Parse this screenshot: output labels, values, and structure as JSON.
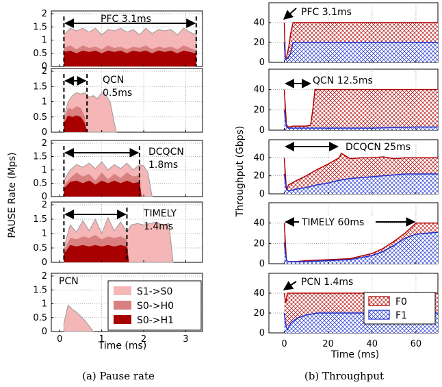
{
  "captions": {
    "left": "(a)  Pause rate",
    "right": "(b)  Throughput"
  },
  "left": {
    "ylabel": "PAUSE Rate (Mps)",
    "xlabel": "Time (ms)",
    "xticks": [
      "0",
      "1",
      "2",
      "3"
    ],
    "yticks": [
      "0",
      "0.5",
      "1",
      "1.5",
      "2"
    ],
    "legend": [
      "S1->S0",
      "S0->H0",
      "S0->H1"
    ]
  },
  "right": {
    "ylabel": "Throughput (Gbps)",
    "xlabel": "Time (ms)",
    "xticks": [
      "0",
      "20",
      "40",
      "60"
    ],
    "yticks": [
      "0",
      "20",
      "40"
    ],
    "legend": [
      "F0",
      "F1"
    ]
  },
  "colors": {
    "s1s0": "#f4b6b6",
    "s0h0": "#d98080",
    "s0h1": "#a80000",
    "f0": "#b00000",
    "f1": "#1a2fd0",
    "grid": "#999999"
  },
  "chart_data": [
    {
      "type": "area",
      "panel": "pause-pfc",
      "annotation": "PFC  3.1ms",
      "xlim": [
        -0.2,
        3.4
      ],
      "ylim": [
        0,
        2
      ],
      "span": [
        0.1,
        3.25
      ],
      "series": [
        {
          "name": "S1->S0",
          "x": [
            0.1,
            0.25,
            0.4,
            0.55,
            0.7,
            0.85,
            1.0,
            1.15,
            1.3,
            1.45,
            1.6,
            1.75,
            1.9,
            2.05,
            2.2,
            2.35,
            2.5,
            2.65,
            2.8,
            2.95,
            3.1,
            3.25
          ],
          "y": [
            1.2,
            1.45,
            1.35,
            1.45,
            1.3,
            1.45,
            1.2,
            1.4,
            1.35,
            1.45,
            1.3,
            1.4,
            1.2,
            1.45,
            1.25,
            1.4,
            1.35,
            1.4,
            1.2,
            1.45,
            1.3,
            1.2
          ]
        },
        {
          "name": "S0->H0",
          "x": [
            0.1,
            0.25,
            0.4,
            0.55,
            0.7,
            0.85,
            1.0,
            1.15,
            1.3,
            1.45,
            1.6,
            1.75,
            1.9,
            2.05,
            2.2,
            2.35,
            2.5,
            2.65,
            2.8,
            2.95,
            3.1,
            3.25
          ],
          "y": [
            0.7,
            0.8,
            0.65,
            0.8,
            0.7,
            0.75,
            0.65,
            0.8,
            0.7,
            0.75,
            0.65,
            0.75,
            0.7,
            0.8,
            0.65,
            0.75,
            0.7,
            0.75,
            0.65,
            0.8,
            0.7,
            0.6
          ]
        },
        {
          "name": "S0->H1",
          "x": [
            0.1,
            0.25,
            0.4,
            0.55,
            0.7,
            0.85,
            1.0,
            1.15,
            1.3,
            1.45,
            1.6,
            1.75,
            1.9,
            2.05,
            2.2,
            2.35,
            2.5,
            2.65,
            2.8,
            2.95,
            3.1,
            3.25
          ],
          "y": [
            0.55,
            0.6,
            0.5,
            0.6,
            0.55,
            0.6,
            0.5,
            0.6,
            0.55,
            0.6,
            0.5,
            0.6,
            0.55,
            0.6,
            0.5,
            0.6,
            0.55,
            0.6,
            0.5,
            0.6,
            0.55,
            0.5
          ]
        }
      ]
    },
    {
      "type": "area",
      "panel": "pause-qcn",
      "annotation": [
        "QCN",
        "0.5ms"
      ],
      "xlim": [
        -0.2,
        3.4
      ],
      "ylim": [
        0,
        2
      ],
      "span": [
        0.1,
        0.65
      ],
      "series": [
        {
          "name": "S1->S0",
          "x": [
            0.1,
            0.2,
            0.3,
            0.4,
            0.5,
            0.6,
            0.7,
            0.8,
            0.9,
            1.0,
            1.1,
            1.2,
            1.3,
            1.35
          ],
          "y": [
            0.5,
            1.0,
            1.2,
            1.3,
            1.25,
            1.3,
            1.15,
            1.2,
            1.1,
            1.3,
            1.2,
            1.0,
            0.3,
            0.0
          ]
        },
        {
          "name": "S0->H0",
          "x": [
            0.1,
            0.2,
            0.3,
            0.4,
            0.5,
            0.6,
            0.65
          ],
          "y": [
            0.4,
            0.8,
            0.75,
            0.85,
            0.8,
            0.5,
            0.0
          ]
        },
        {
          "name": "S0->H1",
          "x": [
            0.1,
            0.2,
            0.3,
            0.4,
            0.5,
            0.6,
            0.65
          ],
          "y": [
            0.3,
            0.55,
            0.5,
            0.55,
            0.5,
            0.3,
            0.0
          ]
        }
      ]
    },
    {
      "type": "area",
      "panel": "pause-dcqcn",
      "annotation": [
        "DCQCN",
        "1.8ms"
      ],
      "xlim": [
        -0.2,
        3.4
      ],
      "ylim": [
        0,
        2
      ],
      "span": [
        0.1,
        1.9
      ],
      "series": [
        {
          "name": "S1->S0",
          "x": [
            0.1,
            0.25,
            0.4,
            0.55,
            0.7,
            0.85,
            1.0,
            1.15,
            1.3,
            1.45,
            1.6,
            1.75,
            1.9,
            2.0,
            2.1,
            2.2
          ],
          "y": [
            0.6,
            1.0,
            1.2,
            1.1,
            1.25,
            1.05,
            1.3,
            1.0,
            1.2,
            1.05,
            1.25,
            1.0,
            1.2,
            1.15,
            0.9,
            0.0
          ]
        },
        {
          "name": "S0->H0",
          "x": [
            0.1,
            0.25,
            0.4,
            0.55,
            0.7,
            0.85,
            1.0,
            1.15,
            1.3,
            1.45,
            1.6,
            1.75,
            1.9,
            1.95
          ],
          "y": [
            0.4,
            0.7,
            0.9,
            0.75,
            0.85,
            0.6,
            0.9,
            0.65,
            0.85,
            0.7,
            0.9,
            0.75,
            0.8,
            0.0
          ]
        },
        {
          "name": "S0->H1",
          "x": [
            0.1,
            0.25,
            0.4,
            0.55,
            0.7,
            0.85,
            1.0,
            1.15,
            1.3,
            1.45,
            1.6,
            1.75,
            1.9,
            1.95
          ],
          "y": [
            0.3,
            0.55,
            0.6,
            0.5,
            0.6,
            0.45,
            0.6,
            0.5,
            0.6,
            0.5,
            0.6,
            0.5,
            0.55,
            0.0
          ]
        }
      ]
    },
    {
      "type": "area",
      "panel": "pause-timely",
      "annotation": [
        "TIMELY",
        "1.4ms"
      ],
      "xlim": [
        -0.2,
        3.4
      ],
      "ylim": [
        0,
        2
      ],
      "span": [
        0.1,
        1.6
      ],
      "series": [
        {
          "name": "S1->S0",
          "x": [
            0.1,
            0.25,
            0.4,
            0.55,
            0.7,
            0.85,
            1.0,
            1.15,
            1.3,
            1.45,
            1.6,
            1.7,
            1.85,
            2.0,
            2.15,
            2.3,
            2.45,
            2.6,
            2.7
          ],
          "y": [
            0.5,
            1.3,
            1.05,
            1.45,
            1.1,
            1.5,
            1.0,
            1.55,
            1.1,
            1.4,
            1.05,
            1.3,
            1.35,
            1.3,
            1.35,
            1.4,
            1.3,
            1.35,
            0.0
          ]
        },
        {
          "name": "S0->H0",
          "x": [
            0.1,
            0.25,
            0.4,
            0.55,
            0.7,
            0.85,
            1.0,
            1.15,
            1.3,
            1.45,
            1.6,
            1.65
          ],
          "y": [
            0.4,
            0.85,
            0.8,
            0.9,
            0.85,
            0.95,
            0.8,
            0.9,
            0.85,
            0.9,
            0.8,
            0.0
          ]
        },
        {
          "name": "S0->H1",
          "x": [
            0.1,
            0.25,
            0.4,
            0.55,
            0.7,
            0.85,
            1.0,
            1.15,
            1.3,
            1.45,
            1.6,
            1.65
          ],
          "y": [
            0.3,
            0.6,
            0.55,
            0.6,
            0.55,
            0.6,
            0.55,
            0.6,
            0.55,
            0.6,
            0.55,
            0.0
          ]
        }
      ]
    },
    {
      "type": "area",
      "panel": "pause-pcn",
      "annotation": "PCN",
      "xlim": [
        -0.2,
        3.4
      ],
      "ylim": [
        0,
        2
      ],
      "span": null,
      "series": [
        {
          "name": "S1->S0",
          "x": [
            0.1,
            0.2,
            0.3,
            0.4,
            0.5,
            0.6,
            0.7,
            0.8
          ],
          "y": [
            0.3,
            0.95,
            0.8,
            0.7,
            0.55,
            0.4,
            0.2,
            0.0
          ]
        },
        {
          "name": "S0->H0",
          "x": [],
          "y": []
        },
        {
          "name": "S0->H1",
          "x": [],
          "y": []
        }
      ]
    },
    {
      "type": "area",
      "panel": "tput-pfc",
      "annotation": "PFC  3.1ms",
      "xlim": [
        -7,
        70
      ],
      "ylim": [
        0,
        60
      ],
      "series": [
        {
          "name": "F0",
          "x": [
            0,
            0.5,
            1,
            2,
            3,
            4,
            5,
            6,
            70
          ],
          "y": [
            40,
            5,
            5,
            15,
            30,
            40,
            40,
            40,
            40
          ]
        },
        {
          "name": "F1",
          "x": [
            0,
            0.5,
            1,
            2,
            3,
            4,
            5,
            6,
            70
          ],
          "y": [
            20,
            3,
            3,
            5,
            10,
            20,
            20,
            20,
            20
          ]
        }
      ]
    },
    {
      "type": "area",
      "panel": "tput-qcn",
      "annotation": "QCN  12.5ms",
      "xlim": [
        -7,
        70
      ],
      "ylim": [
        0,
        60
      ],
      "series": [
        {
          "name": "F0",
          "x": [
            0,
            1,
            2,
            4,
            6,
            8,
            10,
            12,
            13,
            14,
            70
          ],
          "y": [
            40,
            5,
            3,
            4,
            4,
            4,
            4,
            5,
            20,
            40,
            40
          ]
        },
        {
          "name": "F1",
          "x": [
            0,
            1,
            2,
            4,
            6,
            8,
            10,
            12,
            13,
            14,
            20,
            40,
            60,
            70
          ],
          "y": [
            20,
            3,
            2,
            2,
            2,
            2,
            2,
            2,
            2,
            2,
            2,
            2,
            3,
            3
          ]
        }
      ]
    },
    {
      "type": "area",
      "panel": "tput-dcqcn",
      "annotation": "DCQCN  25ms",
      "xlim": [
        -7,
        70
      ],
      "ylim": [
        0,
        60
      ],
      "series": [
        {
          "name": "F0",
          "x": [
            0,
            1,
            2,
            5,
            10,
            15,
            20,
            25,
            26,
            30,
            35,
            40,
            45,
            50,
            55,
            60,
            65,
            70
          ],
          "y": [
            40,
            5,
            10,
            14,
            20,
            27,
            33,
            40,
            45,
            39,
            40,
            40,
            41,
            39,
            40,
            40,
            40,
            40
          ]
        },
        {
          "name": "F1",
          "x": [
            0,
            1,
            2,
            5,
            10,
            15,
            20,
            25,
            30,
            35,
            40,
            45,
            50,
            55,
            60,
            65,
            70
          ],
          "y": [
            22,
            5,
            3,
            5,
            7,
            10,
            12,
            15,
            17,
            18,
            19,
            20,
            21,
            22,
            22,
            22,
            22
          ]
        }
      ]
    },
    {
      "type": "area",
      "panel": "tput-timely",
      "annotation": "TIMELY  60ms",
      "xlim": [
        -7,
        70
      ],
      "ylim": [
        0,
        60
      ],
      "series": [
        {
          "name": "F0",
          "x": [
            0,
            1,
            2,
            5,
            10,
            20,
            30,
            40,
            45,
            50,
            55,
            60,
            61,
            65,
            70
          ],
          "y": [
            40,
            3,
            2,
            2,
            3,
            4,
            5,
            10,
            15,
            22,
            30,
            40,
            40,
            40,
            40
          ]
        },
        {
          "name": "F1",
          "x": [
            0,
            1,
            2,
            5,
            10,
            20,
            30,
            40,
            45,
            50,
            55,
            60,
            65,
            70
          ],
          "y": [
            21,
            3,
            2,
            2,
            2,
            3,
            4,
            8,
            12,
            18,
            25,
            29,
            30,
            31
          ]
        }
      ]
    },
    {
      "type": "area",
      "panel": "tput-pcn",
      "annotation": "PCN  1.4ms",
      "xlim": [
        -7,
        70
      ],
      "ylim": [
        0,
        60
      ],
      "series": [
        {
          "name": "F0",
          "x": [
            0,
            0.7,
            1.4,
            2,
            70
          ],
          "y": [
            40,
            30,
            40,
            40,
            40
          ]
        },
        {
          "name": "F1",
          "x": [
            0,
            0.7,
            1.4,
            3,
            6,
            10,
            15,
            20,
            70
          ],
          "y": [
            20,
            8,
            3,
            10,
            15,
            18,
            20,
            20,
            20
          ]
        }
      ]
    }
  ]
}
